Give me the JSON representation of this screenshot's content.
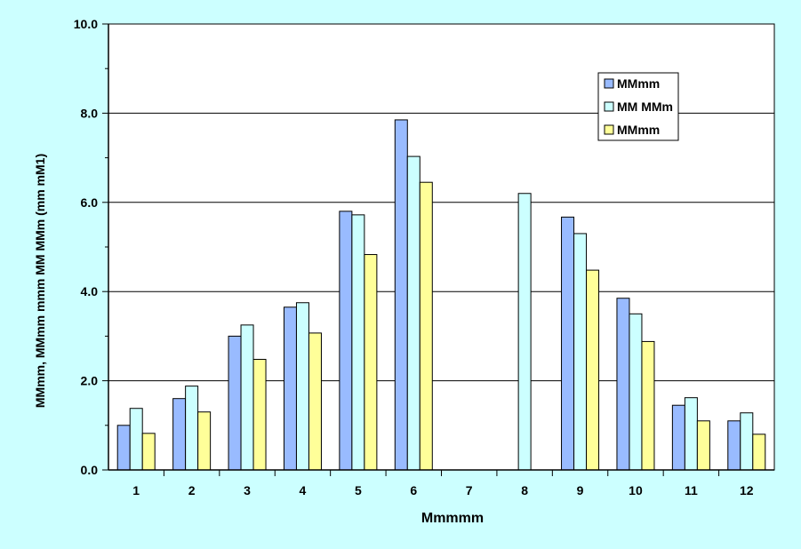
{
  "chart_data": {
    "type": "bar",
    "title": "",
    "xlabel": "Mmmmm",
    "ylabel": "MMmm, MMmm mmm MM MMm (mm mM1)",
    "ylim": [
      0,
      10
    ],
    "yticks": [
      "0.0",
      "2.0",
      "4.0",
      "6.0",
      "8.0",
      "10.0"
    ],
    "categories": [
      "1",
      "2",
      "3",
      "4",
      "5",
      "6",
      "7",
      "8",
      "9",
      "10",
      "11",
      "12"
    ],
    "grid": true,
    "legend_position": "top-right",
    "series": [
      {
        "name": "MMmm",
        "color": "#99bbff",
        "values": [
          1.0,
          1.6,
          3.0,
          3.65,
          5.8,
          7.85,
          null,
          null,
          5.67,
          3.85,
          1.45,
          1.1
        ]
      },
      {
        "name": "MM MMm",
        "color": "#ccffff",
        "values": [
          1.38,
          1.88,
          3.25,
          3.75,
          5.72,
          7.03,
          null,
          6.2,
          5.3,
          3.5,
          1.62,
          1.28
        ]
      },
      {
        "name": "MMmm",
        "color": "#ffff99",
        "values": [
          0.82,
          1.3,
          2.48,
          3.07,
          4.83,
          6.45,
          null,
          null,
          4.48,
          2.88,
          1.1,
          0.8
        ]
      }
    ]
  }
}
